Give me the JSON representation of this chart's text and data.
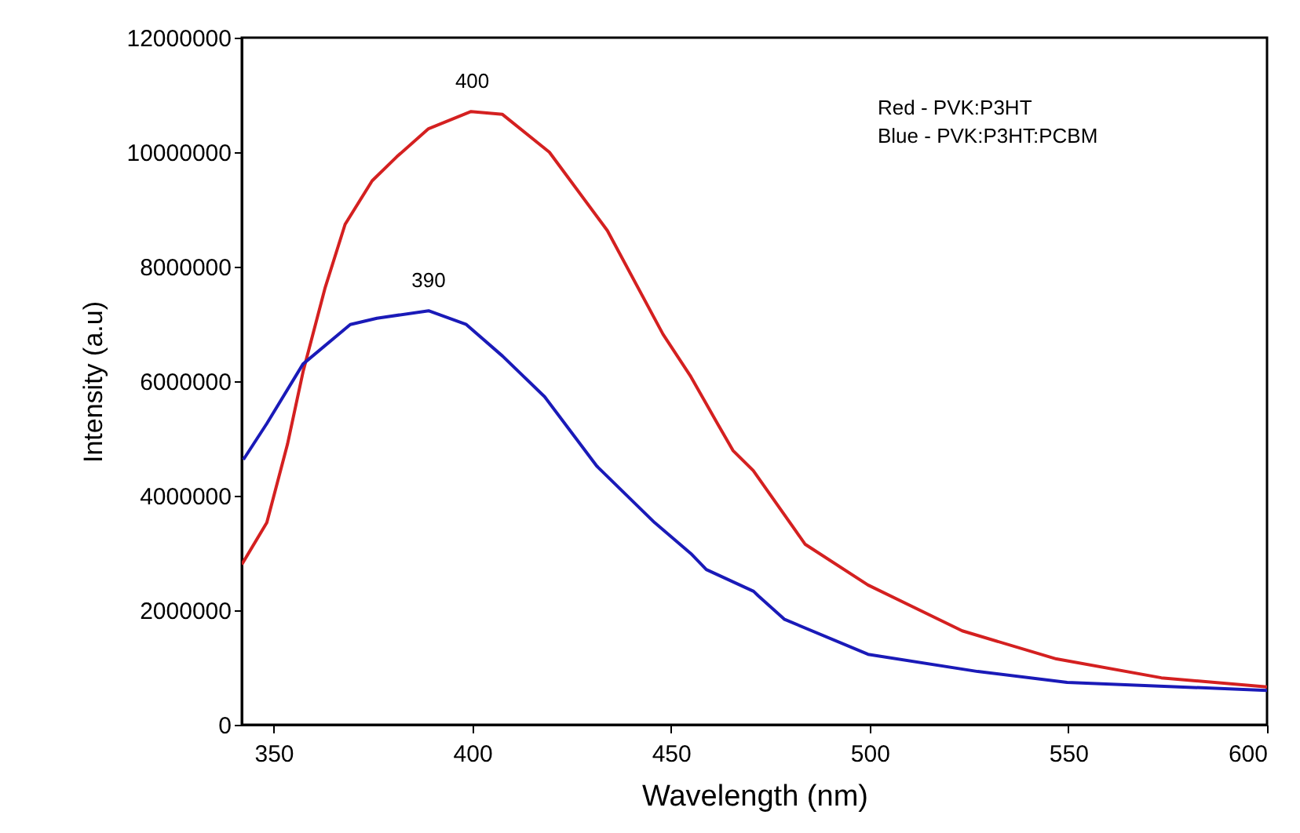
{
  "chart_data": {
    "type": "line",
    "xlabel": "Wavelength (nm)",
    "ylabel": "Intensity (a.u)",
    "xlim": [
      342,
      600
    ],
    "xticks": [
      350,
      400,
      450,
      500,
      550,
      600
    ],
    "ylim": [
      0,
      12000000
    ],
    "yticks": [
      0,
      2000000,
      4000000,
      6000000,
      8000000,
      10000000,
      12000000
    ],
    "series": [
      {
        "color": "#d42020",
        "x": [
          342,
          348.3,
          353.5,
          357.4,
          363,
          368,
          374.8,
          381,
          389,
          399.7,
          407.6,
          419.4,
          434,
          448,
          455,
          461.7,
          465.6,
          470.7,
          483.8,
          499.6,
          523.3,
          547,
          573.4,
          600
        ],
        "values": [
          2800000,
          3530000,
          4900000,
          6160000,
          7640000,
          8740000,
          9500000,
          9920000,
          10410000,
          10710000,
          10660000,
          10000000,
          8630000,
          6820000,
          6080000,
          5260000,
          4790000,
          4440000,
          3150000,
          2440000,
          1640000,
          1150000,
          820000,
          660000
        ]
      },
      {
        "color": "#1a1ab8",
        "x": [
          342.4,
          348.3,
          357.4,
          369.3,
          376,
          389,
          398.5,
          407.6,
          418.2,
          431.3,
          445.9,
          455,
          458.9,
          470.8,
          472,
          478.6,
          499.6,
          527.2,
          549.7,
          600
        ],
        "values": [
          4630000,
          5260000,
          6300000,
          6990000,
          7100000,
          7230000,
          6990000,
          6440000,
          5730000,
          4520000,
          3530000,
          2990000,
          2710000,
          2330000,
          2250000,
          1840000,
          1230000,
          930000,
          740000,
          600000
        ]
      }
    ],
    "annotations": [
      {
        "text": "400",
        "x": 400,
        "y": 10710000
      },
      {
        "text": "390",
        "x": 389,
        "y": 7230000
      },
      "Red - PVK:P3HT",
      "Blue - PVK:P3HT:PCBM"
    ],
    "grid": false
  }
}
